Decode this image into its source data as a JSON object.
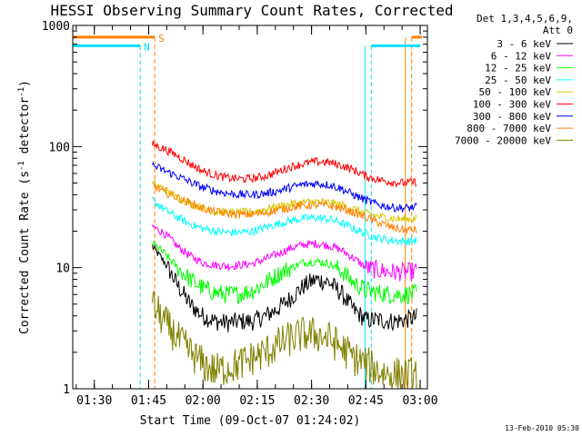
{
  "chart_data": {
    "type": "line",
    "title": "HESSI Observing Summary Count Rates, Corrected",
    "xlabel": "Start Time (09-Oct-07 01:24:02)",
    "ylabel_main": "Corrected Count Rate (s",
    "ylabel_sup1": "-1",
    "ylabel_mid": " detector",
    "ylabel_sup2": "-1",
    "ylabel_end": ")",
    "y_scale": "log",
    "ylim": [
      1,
      1000
    ],
    "xlim": [
      "01:24:02",
      "03:02:00"
    ],
    "x_ticks": [
      "01:30",
      "01:45",
      "02:00",
      "02:15",
      "02:30",
      "02:45",
      "03:00"
    ],
    "y_ticks": [
      "1",
      "10",
      "100",
      "1000"
    ],
    "grid": false,
    "legend_header": [
      "Det 1,3,4,5,6,9,",
      "Att 0"
    ],
    "legend_position": "top-right outside",
    "flags": [
      {
        "label": "S",
        "color": "#ff8000",
        "segments": [
          [
            "01:24:02",
            "01:46:40"
          ],
          [
            "02:57:40",
            "03:00:30"
          ]
        ],
        "bounds": [
          "01:46:40",
          "02:57:40"
        ]
      },
      {
        "label": "N",
        "color": "#00e0ff",
        "segments": [
          [
            "01:24:02",
            "01:42:40"
          ],
          [
            "02:46:30",
            "03:00:00"
          ]
        ],
        "bounds": [
          "01:42:40",
          "02:46:30"
        ]
      }
    ],
    "series": [
      {
        "name": "3 - 6 keV",
        "color": "#000000",
        "values": [
          [
            15,
            11,
            7.2,
            5.0,
            4.0,
            3.6,
            3.5,
            3.6,
            3.6,
            4.0,
            4.6,
            5.6,
            7.0,
            8.0,
            7.6,
            6.2,
            4.5,
            3.7,
            3.7,
            3.6,
            3.7,
            3.9
          ]
        ]
      },
      {
        "name": "6 - 12 keV",
        "color": "#ff00ff",
        "values": [
          [
            22,
            19,
            15,
            12.5,
            11,
            10.5,
            10.3,
            10.5,
            10.8,
            11.8,
            13,
            14.5,
            15.5,
            15.8,
            15.3,
            14,
            12,
            10,
            9.5,
            9.2,
            9.2,
            9.3
          ]
        ]
      },
      {
        "name": "12 - 25 keV",
        "color": "#00ff00",
        "values": [
          [
            16,
            13,
            10,
            8.0,
            6.8,
            6.2,
            6.0,
            6.1,
            6.5,
            7.5,
            8.8,
            10,
            11,
            11.3,
            10.8,
            9.5,
            7.5,
            6.5,
            6.2,
            6.0,
            6.0,
            6.1
          ]
        ]
      },
      {
        "name": "25 - 50 keV",
        "color": "#00ffff",
        "values": [
          [
            36,
            30,
            26,
            23,
            21,
            20,
            19.5,
            19.5,
            20,
            21.5,
            23,
            24.5,
            25.5,
            25.8,
            25.2,
            23.5,
            21,
            19,
            17.5,
            16.8,
            16.5,
            16.8
          ]
        ]
      },
      {
        "name": "50 - 100 keV",
        "color": "#d8c800",
        "values": [
          [
            50,
            44,
            38,
            34,
            31,
            29,
            28.5,
            28.5,
            29,
            30.5,
            32,
            33.5,
            34.5,
            35,
            34.5,
            33,
            30.5,
            28,
            26.5,
            25.5,
            25,
            25.5
          ]
        ]
      },
      {
        "name": "100 - 300 keV",
        "color": "#ff0000",
        "values": [
          [
            105,
            95,
            84,
            72,
            63,
            58,
            55,
            54,
            54.5,
            57,
            62,
            68,
            72,
            75,
            74,
            70,
            64,
            57,
            53,
            51,
            50,
            51
          ]
        ]
      },
      {
        "name": "300 - 800 keV",
        "color": "#0000ff",
        "values": [
          [
            70,
            63,
            57,
            51,
            46,
            43,
            41,
            40,
            40,
            41,
            43,
            46,
            48.5,
            49.5,
            48.5,
            45,
            40,
            36,
            33,
            31.5,
            31,
            31.5
          ]
        ]
      },
      {
        "name": "800 - 7000 keV",
        "color": "#ff8000",
        "values": [
          [
            48,
            42,
            38,
            34,
            31,
            29,
            28,
            27.5,
            27.5,
            28.5,
            30,
            31.5,
            32.5,
            33,
            32.5,
            31,
            28.5,
            26,
            23.5,
            21.5,
            20.5,
            20.5
          ]
        ]
      },
      {
        "name": "7000 - 20000 keV",
        "color": "#808000",
        "values": [
          [
            5,
            3.5,
            2.6,
            2.0,
            1.6,
            1.4,
            1.5,
            1.6,
            1.8,
            2.0,
            2.3,
            2.6,
            2.8,
            2.8,
            2.6,
            2.2,
            1.8,
            1.6,
            1.4,
            1.3,
            1.3,
            1.3
          ]
        ]
      }
    ],
    "series_time_range": [
      "01:46:00",
      "02:59:00"
    ],
    "footer_date": "13-Feb-2010 05:30"
  }
}
